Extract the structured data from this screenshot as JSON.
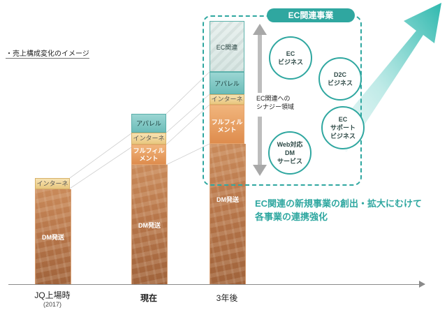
{
  "caption": "・売上構成変化のイメージ",
  "x_labels": [
    {
      "label": "JQ上場時",
      "sub": "(2017)"
    },
    {
      "label": "現在",
      "sub": ""
    },
    {
      "label": "3年後",
      "sub": ""
    }
  ],
  "bars": {
    "jq": {
      "internet": "インターネット",
      "dm": "DM発送"
    },
    "now": {
      "apparel": "アパレル",
      "internet": "インターネット",
      "fulfill_1": "フルフィル",
      "fulfill_2": "メント",
      "dm": "DM発送"
    },
    "future": {
      "ec": "EC関連",
      "apparel": "アパレル",
      "internet": "インターネット",
      "fulfill_1": "フルフィル",
      "fulfill_2": "メント",
      "dm": "DM発送"
    }
  },
  "ec_box": {
    "title": "EC関連事業",
    "synergy_1": "EC関連への",
    "synergy_2": "シナジー領域",
    "circles": [
      "EC\nビジネス",
      "D2C\nビジネス",
      "EC\nサポート\nビジネス",
      "Web対応\nDM\nサービス"
    ]
  },
  "headline_1": "EC関連の新規事業の創出・拡大にむけて",
  "headline_2": "各事業の連携強化",
  "colors": {
    "accent": "#2fa7a0",
    "dm": "#b7764a",
    "internet": "#e9c77e",
    "fulfill": "#de8c4d",
    "apparel": "#6cbcb8"
  }
}
